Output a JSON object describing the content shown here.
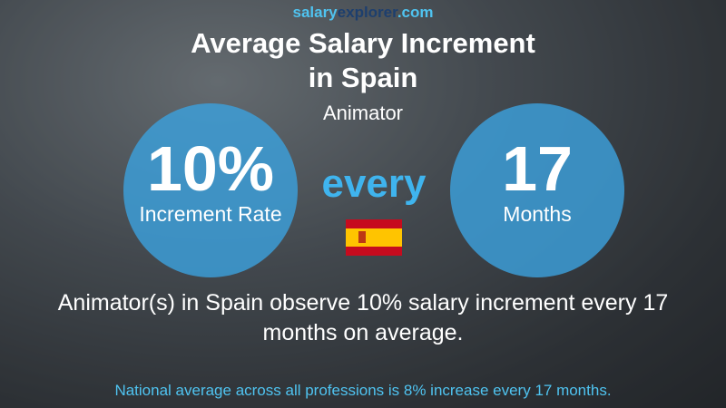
{
  "header": {
    "site": {
      "part1": "salary",
      "part2": "explorer",
      "part3": ".com"
    },
    "title_line1": "Average Salary Increment",
    "title_line2": "in Spain",
    "subtitle": "Animator"
  },
  "left_circle": {
    "value": "10%",
    "label": "Increment Rate"
  },
  "middle": {
    "word": "every"
  },
  "right_circle": {
    "value": "17",
    "label": "Months"
  },
  "description": "Animator(s) in Spain observe 10% salary increment every 17 months on average.",
  "footer": "National average across all professions is 8% increase every 17 months."
}
